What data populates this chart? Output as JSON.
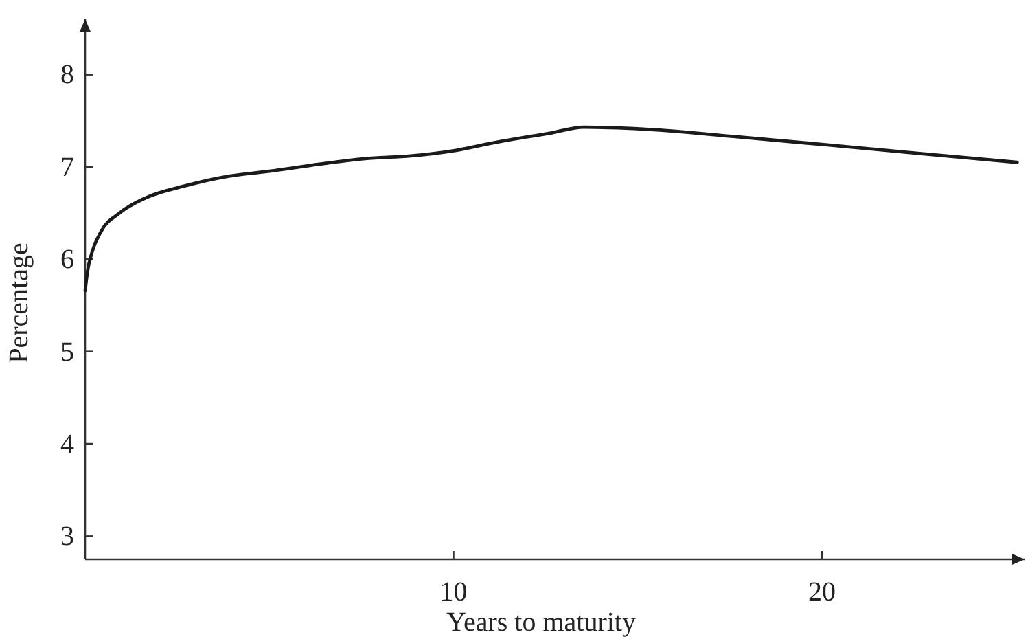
{
  "chart_data": {
    "type": "line",
    "xlabel": "Years to maturity",
    "ylabel": "Percentage",
    "x": [
      0,
      0.06,
      0.19,
      0.43,
      0.93,
      1.67,
      2.66,
      3.9,
      5.13,
      6.36,
      7.6,
      8.84,
      10.07,
      11.06,
      12.67,
      13.53,
      15.14,
      17.6,
      20.1,
      22.55,
      25.3
    ],
    "series": [
      {
        "color": "#1a1a1a",
        "values": [
          5.66,
          5.86,
          6.08,
          6.3,
          6.5,
          6.67,
          6.79,
          6.9,
          6.96,
          7.03,
          7.09,
          7.12,
          7.18,
          7.26,
          7.37,
          7.43,
          7.41,
          7.33,
          7.24,
          7.15,
          7.05
        ]
      }
    ],
    "xlim": [
      0,
      25.5
    ],
    "ylim": [
      2.75,
      8.6
    ],
    "xticks": [
      10,
      20
    ],
    "yticks": [
      3,
      4,
      5,
      6,
      7,
      8
    ],
    "marker": "none",
    "line_style": "solid"
  }
}
